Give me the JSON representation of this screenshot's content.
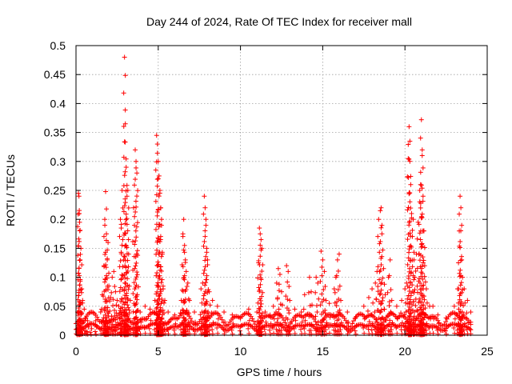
{
  "chart_data": {
    "type": "scatter",
    "title": "Day 244 of 2024, Rate Of TEC Index for receiver mall",
    "xlabel": "GPS time / hours",
    "ylabel": "ROTI / TECUs",
    "xlim": [
      0,
      25
    ],
    "ylim": [
      0,
      0.5
    ],
    "xticks": [
      0,
      5,
      10,
      15,
      20,
      25
    ],
    "yticks": [
      0,
      0.05,
      0.1,
      0.15,
      0.2,
      0.25,
      0.3,
      0.35,
      0.4,
      0.45,
      0.5
    ],
    "xtick_labels": [
      "0",
      "5",
      "10",
      "15",
      "20",
      "25"
    ],
    "ytick_labels": [
      "0",
      "0.05",
      "0.1",
      "0.15",
      "0.2",
      "0.25",
      "0.3",
      "0.35",
      "0.4",
      "0.45",
      "0.5"
    ],
    "grid": true,
    "marker": "+",
    "marker_color": "#ff0000",
    "series": [
      {
        "name": "ROTI",
        "points": [
          [
            0.05,
            0.01
          ],
          [
            0.1,
            0.04
          ],
          [
            0.15,
            0.245
          ],
          [
            0.18,
            0.24
          ],
          [
            0.2,
            0.21
          ],
          [
            0.22,
            0.195
          ],
          [
            0.25,
            0.13
          ],
          [
            0.3,
            0.15
          ],
          [
            0.35,
            0.08
          ],
          [
            0.4,
            0.06
          ],
          [
            0.5,
            0.045
          ],
          [
            0.6,
            0.03
          ],
          [
            0.7,
            0.025
          ],
          [
            0.9,
            0.02
          ],
          [
            1.2,
            0.025
          ],
          [
            1.5,
            0.04
          ],
          [
            1.6,
            0.07
          ],
          [
            1.7,
            0.12
          ],
          [
            1.75,
            0.2
          ],
          [
            1.8,
            0.248
          ],
          [
            1.85,
            0.175
          ],
          [
            1.9,
            0.13
          ],
          [
            1.95,
            0.16
          ],
          [
            2.0,
            0.085
          ],
          [
            2.1,
            0.065
          ],
          [
            2.2,
            0.1
          ],
          [
            2.3,
            0.11
          ],
          [
            2.4,
            0.075
          ],
          [
            2.5,
            0.06
          ],
          [
            2.6,
            0.05
          ],
          [
            2.7,
            0.2
          ],
          [
            2.75,
            0.185
          ],
          [
            2.8,
            0.25
          ],
          [
            2.9,
            0.13
          ],
          [
            2.95,
            0.48
          ],
          [
            3.0,
            0.365
          ],
          [
            3.05,
            0.29
          ],
          [
            3.1,
            0.24
          ],
          [
            3.15,
            0.25
          ],
          [
            3.2,
            0.14
          ],
          [
            3.3,
            0.06
          ],
          [
            3.5,
            0.22
          ],
          [
            3.6,
            0.32
          ],
          [
            3.65,
            0.3
          ],
          [
            3.7,
            0.28
          ],
          [
            3.75,
            0.138
          ],
          [
            3.9,
            0.04
          ],
          [
            4.2,
            0.05
          ],
          [
            4.5,
            0.045
          ],
          [
            4.8,
            0.06
          ],
          [
            4.9,
            0.345
          ],
          [
            4.95,
            0.33
          ],
          [
            5.0,
            0.3
          ],
          [
            5.05,
            0.275
          ],
          [
            5.1,
            0.25
          ],
          [
            5.15,
            0.22
          ],
          [
            5.2,
            0.2
          ],
          [
            5.25,
            0.14
          ],
          [
            5.3,
            0.08
          ],
          [
            5.4,
            0.06
          ],
          [
            5.6,
            0.04
          ],
          [
            6.0,
            0.035
          ],
          [
            6.4,
            0.06
          ],
          [
            6.5,
            0.175
          ],
          [
            6.55,
            0.2
          ],
          [
            6.6,
            0.155
          ],
          [
            6.65,
            0.13
          ],
          [
            6.7,
            0.11
          ],
          [
            6.8,
            0.09
          ],
          [
            6.9,
            0.06
          ],
          [
            7.2,
            0.04
          ],
          [
            7.6,
            0.08
          ],
          [
            7.7,
            0.09
          ],
          [
            7.8,
            0.24
          ],
          [
            7.85,
            0.22
          ],
          [
            7.9,
            0.2
          ],
          [
            7.95,
            0.15
          ],
          [
            8.0,
            0.13
          ],
          [
            8.1,
            0.075
          ],
          [
            8.3,
            0.06
          ],
          [
            8.6,
            0.05
          ],
          [
            9.0,
            0.04
          ],
          [
            9.5,
            0.035
          ],
          [
            10.0,
            0.03
          ],
          [
            10.5,
            0.045
          ],
          [
            11.0,
            0.04
          ],
          [
            11.1,
            0.125
          ],
          [
            11.15,
            0.185
          ],
          [
            11.2,
            0.175
          ],
          [
            11.25,
            0.165
          ],
          [
            11.3,
            0.15
          ],
          [
            11.5,
            0.04
          ],
          [
            11.8,
            0.035
          ],
          [
            12.0,
            0.05
          ],
          [
            12.2,
            0.09
          ],
          [
            12.3,
            0.115
          ],
          [
            12.4,
            0.105
          ],
          [
            12.5,
            0.075
          ],
          [
            12.8,
            0.12
          ],
          [
            12.9,
            0.11
          ],
          [
            13.0,
            0.06
          ],
          [
            13.3,
            0.045
          ],
          [
            13.7,
            0.04
          ],
          [
            13.9,
            0.07
          ],
          [
            14.2,
            0.1
          ],
          [
            14.3,
            0.075
          ],
          [
            14.6,
            0.1
          ],
          [
            14.7,
            0.09
          ],
          [
            14.9,
            0.145
          ],
          [
            15.0,
            0.13
          ],
          [
            15.1,
            0.11
          ],
          [
            15.2,
            0.06
          ],
          [
            15.4,
            0.055
          ],
          [
            15.7,
            0.08
          ],
          [
            15.8,
            0.1
          ],
          [
            15.9,
            0.13
          ],
          [
            16.0,
            0.14
          ],
          [
            16.1,
            0.06
          ],
          [
            16.5,
            0.04
          ],
          [
            17.0,
            0.03
          ],
          [
            17.5,
            0.05
          ],
          [
            17.8,
            0.065
          ],
          [
            18.0,
            0.08
          ],
          [
            18.2,
            0.09
          ],
          [
            18.3,
            0.11
          ],
          [
            18.4,
            0.2
          ],
          [
            18.5,
            0.215
          ],
          [
            18.55,
            0.22
          ],
          [
            18.6,
            0.175
          ],
          [
            18.7,
            0.115
          ],
          [
            18.8,
            0.07
          ],
          [
            19.0,
            0.1
          ],
          [
            19.1,
            0.13
          ],
          [
            19.2,
            0.06
          ],
          [
            19.5,
            0.05
          ],
          [
            19.8,
            0.06
          ],
          [
            20.0,
            0.08
          ],
          [
            20.1,
            0.09
          ],
          [
            20.2,
            0.305
          ],
          [
            20.25,
            0.36
          ],
          [
            20.3,
            0.335
          ],
          [
            20.35,
            0.26
          ],
          [
            20.4,
            0.21
          ],
          [
            20.5,
            0.2
          ],
          [
            20.55,
            0.13
          ],
          [
            20.6,
            0.1
          ],
          [
            20.7,
            0.14
          ],
          [
            20.8,
            0.195
          ],
          [
            20.9,
            0.25
          ],
          [
            20.95,
            0.26
          ],
          [
            21.0,
            0.372
          ],
          [
            21.05,
            0.32
          ],
          [
            21.1,
            0.24
          ],
          [
            21.15,
            0.18
          ],
          [
            21.2,
            0.12
          ],
          [
            21.3,
            0.08
          ],
          [
            21.5,
            0.05
          ],
          [
            21.7,
            0.05
          ],
          [
            22.0,
            0.035
          ],
          [
            22.5,
            0.03
          ],
          [
            23.0,
            0.05
          ],
          [
            23.2,
            0.08
          ],
          [
            23.3,
            0.18
          ],
          [
            23.35,
            0.24
          ],
          [
            23.4,
            0.22
          ],
          [
            23.45,
            0.13
          ],
          [
            23.5,
            0.1
          ],
          [
            23.6,
            0.08
          ],
          [
            23.8,
            0.06
          ],
          [
            24.0,
            0.04
          ]
        ]
      }
    ]
  }
}
